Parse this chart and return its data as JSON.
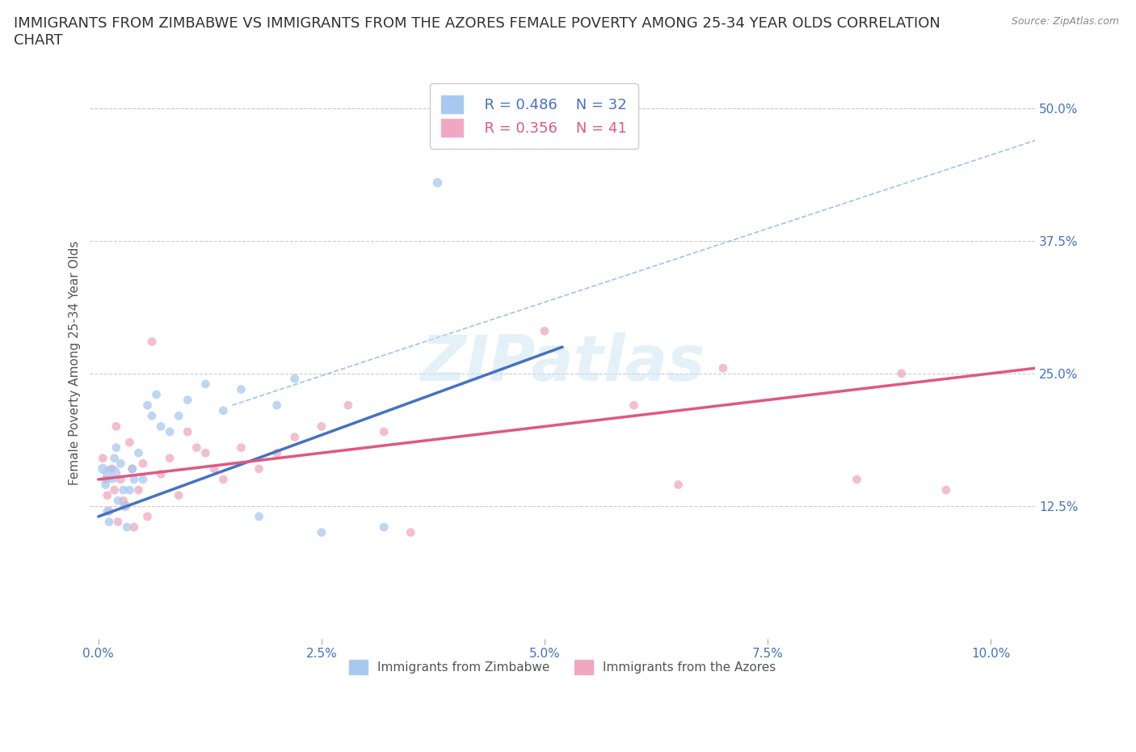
{
  "title": "IMMIGRANTS FROM ZIMBABWE VS IMMIGRANTS FROM THE AZORES FEMALE POVERTY AMONG 25-34 YEAR OLDS CORRELATION\nCHART",
  "source": "Source: ZipAtlas.com",
  "ylabel": "Female Poverty Among 25-34 Year Olds",
  "xlabel_ticks": [
    "0.0%",
    "2.5%",
    "5.0%",
    "7.5%",
    "10.0%"
  ],
  "xlabel_vals": [
    0.0,
    2.5,
    5.0,
    7.5,
    10.0
  ],
  "ylim": [
    0,
    52
  ],
  "xlim": [
    -0.1,
    10.5
  ],
  "yticks": [
    0,
    12.5,
    25.0,
    37.5,
    50.0
  ],
  "ytick_labels": [
    "",
    "12.5%",
    "25.0%",
    "37.5%",
    "50.0%"
  ],
  "watermark": "ZIPatlas",
  "legend_r1": "R = 0.486",
  "legend_n1": "N = 32",
  "legend_r2": "R = 0.356",
  "legend_n2": "N = 41",
  "color_zimbabwe": "#a8c8f0",
  "color_azores": "#f0a8c0",
  "line_color_zimbabwe": "#4472c4",
  "line_color_azores": "#e05880",
  "trend_zim_x0": 0.0,
  "trend_zim_y0": 11.5,
  "trend_zim_x1": 5.2,
  "trend_zim_y1": 27.5,
  "trend_az_x0": 0.0,
  "trend_az_y0": 15.0,
  "trend_az_x1": 10.5,
  "trend_az_y1": 25.5,
  "conf_upper_x0": 1.5,
  "conf_upper_y0": 22.0,
  "conf_upper_x1": 10.5,
  "conf_upper_y1": 47.0,
  "zimbabwe_x": [
    0.05,
    0.08,
    0.1,
    0.12,
    0.15,
    0.18,
    0.2,
    0.22,
    0.25,
    0.28,
    0.3,
    0.32,
    0.35,
    0.38,
    0.4,
    0.45,
    0.5,
    0.55,
    0.6,
    0.65,
    0.7,
    0.8,
    0.9,
    1.0,
    1.2,
    1.4,
    1.6,
    1.8,
    2.0,
    2.2,
    2.5,
    3.2
  ],
  "zimbabwe_y": [
    16.0,
    14.5,
    12.0,
    11.0,
    15.5,
    17.0,
    18.0,
    13.0,
    16.5,
    14.0,
    12.5,
    10.5,
    14.0,
    16.0,
    15.0,
    17.5,
    15.0,
    22.0,
    21.0,
    23.0,
    20.0,
    19.5,
    21.0,
    22.5,
    24.0,
    21.5,
    23.5,
    11.5,
    22.0,
    24.5,
    10.0,
    10.5
  ],
  "zimbabwe_sizes": [
    80,
    60,
    60,
    60,
    250,
    60,
    60,
    60,
    60,
    60,
    60,
    60,
    60,
    60,
    60,
    60,
    60,
    60,
    60,
    60,
    60,
    60,
    60,
    60,
    60,
    60,
    60,
    60,
    60,
    60,
    60,
    60
  ],
  "high_outlier_zim_x": 3.8,
  "high_outlier_zim_y": 43.0,
  "azores_x": [
    0.05,
    0.08,
    0.1,
    0.12,
    0.15,
    0.18,
    0.2,
    0.22,
    0.25,
    0.28,
    0.3,
    0.35,
    0.38,
    0.4,
    0.45,
    0.5,
    0.55,
    0.6,
    0.7,
    0.8,
    0.9,
    1.0,
    1.1,
    1.2,
    1.3,
    1.4,
    1.6,
    1.8,
    2.0,
    2.2,
    2.5,
    2.8,
    3.2,
    3.5,
    5.0,
    6.0,
    6.5,
    7.0,
    8.5,
    9.0,
    9.5
  ],
  "azores_y": [
    17.0,
    15.0,
    13.5,
    12.0,
    16.0,
    14.0,
    20.0,
    11.0,
    15.0,
    13.0,
    12.5,
    18.5,
    16.0,
    10.5,
    14.0,
    16.5,
    11.5,
    28.0,
    15.5,
    17.0,
    13.5,
    19.5,
    18.0,
    17.5,
    16.0,
    15.0,
    18.0,
    16.0,
    17.5,
    19.0,
    20.0,
    22.0,
    19.5,
    10.0,
    29.0,
    22.0,
    14.5,
    25.5,
    15.0,
    25.0,
    14.0
  ],
  "azores_sizes": [
    60,
    60,
    60,
    60,
    60,
    60,
    60,
    60,
    60,
    60,
    80,
    60,
    60,
    60,
    60,
    60,
    60,
    60,
    60,
    60,
    60,
    60,
    60,
    60,
    60,
    60,
    60,
    60,
    60,
    60,
    60,
    60,
    60,
    60,
    60,
    60,
    60,
    60,
    60,
    60,
    60
  ],
  "background_color": "#ffffff",
  "grid_color": "#cccccc",
  "title_fontsize": 13,
  "axis_label_fontsize": 11,
  "tick_fontsize": 11,
  "legend1_label": "Immigrants from Zimbabwe",
  "legend2_label": "Immigrants from the Azores"
}
